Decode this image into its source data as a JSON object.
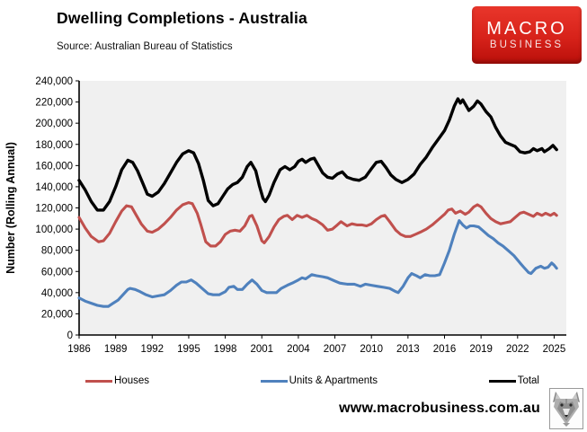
{
  "header": {
    "title": "Dwelling Completions - Australia",
    "source": "Source: Australian Bureau of Statistics",
    "logo": {
      "line1": "MACRO",
      "line2": "BUSINESS",
      "bg_color": "#d7221a"
    }
  },
  "footer": {
    "website": "www.macrobusiness.com.au",
    "wolf_logo": "wolf-head-icon"
  },
  "chart_data": {
    "type": "line",
    "title": "Dwelling Completions - Australia",
    "xlabel": "",
    "ylabel": "Number (Rolling Annual)",
    "xlim": [
      1986,
      2026
    ],
    "ylim": [
      0,
      240000
    ],
    "x_ticks": [
      1986,
      1989,
      1992,
      1995,
      1998,
      2001,
      2004,
      2007,
      2010,
      2013,
      2016,
      2019,
      2022,
      2025
    ],
    "y_ticks": [
      0,
      20000,
      40000,
      60000,
      80000,
      100000,
      120000,
      140000,
      160000,
      180000,
      200000,
      220000,
      240000
    ],
    "grid": false,
    "plot_bg": "#f0f0f0",
    "legend_position": "bottom",
    "series": [
      {
        "name": "Houses",
        "color": "#c0504d",
        "points": [
          [
            1986,
            111000
          ],
          [
            1986.5,
            101000
          ],
          [
            1987,
            93000
          ],
          [
            1987.6,
            88000
          ],
          [
            1988,
            89000
          ],
          [
            1988.5,
            96000
          ],
          [
            1989,
            107000
          ],
          [
            1989.5,
            117000
          ],
          [
            1989.9,
            122000
          ],
          [
            1990.3,
            121000
          ],
          [
            1990.7,
            113000
          ],
          [
            1991.1,
            105000
          ],
          [
            1991.6,
            98000
          ],
          [
            1992,
            97000
          ],
          [
            1992.5,
            100000
          ],
          [
            1993,
            105000
          ],
          [
            1993.5,
            111000
          ],
          [
            1994,
            118000
          ],
          [
            1994.5,
            123000
          ],
          [
            1995,
            125000
          ],
          [
            1995.3,
            124000
          ],
          [
            1995.7,
            115000
          ],
          [
            1996,
            104000
          ],
          [
            1996.4,
            88000
          ],
          [
            1996.8,
            84000
          ],
          [
            1997.2,
            84000
          ],
          [
            1997.6,
            88000
          ],
          [
            1998,
            95000
          ],
          [
            1998.4,
            98000
          ],
          [
            1998.8,
            99000
          ],
          [
            1999.2,
            98000
          ],
          [
            1999.6,
            103000
          ],
          [
            2000,
            112000
          ],
          [
            2000.2,
            113000
          ],
          [
            2000.6,
            103000
          ],
          [
            2001,
            89000
          ],
          [
            2001.2,
            87000
          ],
          [
            2001.6,
            93000
          ],
          [
            2002,
            102000
          ],
          [
            2002.4,
            109000
          ],
          [
            2002.8,
            112000
          ],
          [
            2003.1,
            113000
          ],
          [
            2003.5,
            109000
          ],
          [
            2003.9,
            113000
          ],
          [
            2004.3,
            111000
          ],
          [
            2004.7,
            113000
          ],
          [
            2005.1,
            110000
          ],
          [
            2005.5,
            108000
          ],
          [
            2006,
            104000
          ],
          [
            2006.4,
            99000
          ],
          [
            2006.8,
            100000
          ],
          [
            2007.2,
            104000
          ],
          [
            2007.5,
            107000
          ],
          [
            2008,
            103000
          ],
          [
            2008.4,
            105000
          ],
          [
            2008.8,
            104000
          ],
          [
            2009.2,
            104000
          ],
          [
            2009.6,
            103000
          ],
          [
            2010,
            105000
          ],
          [
            2010.4,
            109000
          ],
          [
            2010.8,
            112000
          ],
          [
            2011.1,
            113000
          ],
          [
            2011.5,
            107000
          ],
          [
            2012,
            99000
          ],
          [
            2012.4,
            95000
          ],
          [
            2012.8,
            93000
          ],
          [
            2013.2,
            93000
          ],
          [
            2013.6,
            95000
          ],
          [
            2014,
            97000
          ],
          [
            2014.5,
            100000
          ],
          [
            2015,
            104000
          ],
          [
            2015.5,
            109000
          ],
          [
            2016,
            114000
          ],
          [
            2016.3,
            118000
          ],
          [
            2016.6,
            119000
          ],
          [
            2016.9,
            115000
          ],
          [
            2017.3,
            117000
          ],
          [
            2017.7,
            114000
          ],
          [
            2018,
            116000
          ],
          [
            2018.4,
            121000
          ],
          [
            2018.7,
            123000
          ],
          [
            2019,
            121000
          ],
          [
            2019.4,
            115000
          ],
          [
            2019.8,
            110000
          ],
          [
            2020.2,
            107000
          ],
          [
            2020.6,
            105000
          ],
          [
            2021,
            106000
          ],
          [
            2021.4,
            107000
          ],
          [
            2021.8,
            111000
          ],
          [
            2022.2,
            115000
          ],
          [
            2022.5,
            116000
          ],
          [
            2022.9,
            114000
          ],
          [
            2023.3,
            112000
          ],
          [
            2023.6,
            115000
          ],
          [
            2024,
            113000
          ],
          [
            2024.3,
            115000
          ],
          [
            2024.7,
            113000
          ],
          [
            2025,
            115000
          ],
          [
            2025.2,
            113000
          ]
        ]
      },
      {
        "name": "Units & Apartments",
        "color": "#4f81bd",
        "points": [
          [
            1986,
            35000
          ],
          [
            1986.5,
            32000
          ],
          [
            1987,
            30000
          ],
          [
            1987.5,
            28000
          ],
          [
            1988,
            27000
          ],
          [
            1988.4,
            27000
          ],
          [
            1988.8,
            30000
          ],
          [
            1989.2,
            33000
          ],
          [
            1989.6,
            38000
          ],
          [
            1990,
            43000
          ],
          [
            1990.2,
            44000
          ],
          [
            1990.6,
            43000
          ],
          [
            1991,
            41000
          ],
          [
            1991.5,
            38000
          ],
          [
            1992,
            36000
          ],
          [
            1992.5,
            37000
          ],
          [
            1993,
            38000
          ],
          [
            1993.5,
            42000
          ],
          [
            1994,
            47000
          ],
          [
            1994.4,
            50000
          ],
          [
            1994.8,
            50000
          ],
          [
            1995.2,
            52000
          ],
          [
            1995.6,
            49000
          ],
          [
            1996,
            45000
          ],
          [
            1996.6,
            39000
          ],
          [
            1997,
            38000
          ],
          [
            1997.5,
            38000
          ],
          [
            1998,
            41000
          ],
          [
            1998.3,
            45000
          ],
          [
            1998.7,
            46000
          ],
          [
            1999,
            43000
          ],
          [
            1999.4,
            43000
          ],
          [
            1999.8,
            48000
          ],
          [
            2000.2,
            52000
          ],
          [
            2000.6,
            48000
          ],
          [
            2001,
            42000
          ],
          [
            2001.4,
            40000
          ],
          [
            2001.8,
            40000
          ],
          [
            2002.2,
            40000
          ],
          [
            2002.6,
            44000
          ],
          [
            2003.1,
            47000
          ],
          [
            2003.5,
            49000
          ],
          [
            2004,
            52000
          ],
          [
            2004.3,
            54000
          ],
          [
            2004.6,
            53000
          ],
          [
            2005.1,
            57000
          ],
          [
            2005.5,
            56000
          ],
          [
            2006,
            55000
          ],
          [
            2006.4,
            54000
          ],
          [
            2007,
            51000
          ],
          [
            2007.4,
            49000
          ],
          [
            2008,
            48000
          ],
          [
            2008.6,
            48000
          ],
          [
            2009.1,
            46000
          ],
          [
            2009.5,
            48000
          ],
          [
            2010,
            47000
          ],
          [
            2010.5,
            46000
          ],
          [
            2011,
            45000
          ],
          [
            2011.5,
            44000
          ],
          [
            2012,
            41000
          ],
          [
            2012.2,
            40000
          ],
          [
            2012.6,
            46000
          ],
          [
            2013,
            54000
          ],
          [
            2013.3,
            58000
          ],
          [
            2013.7,
            56000
          ],
          [
            2014,
            54000
          ],
          [
            2014.4,
            57000
          ],
          [
            2014.8,
            56000
          ],
          [
            2015.2,
            56000
          ],
          [
            2015.6,
            57000
          ],
          [
            2016,
            68000
          ],
          [
            2016.4,
            80000
          ],
          [
            2016.8,
            95000
          ],
          [
            2017.2,
            108000
          ],
          [
            2017.5,
            104000
          ],
          [
            2017.8,
            101000
          ],
          [
            2018.1,
            103000
          ],
          [
            2018.4,
            103000
          ],
          [
            2018.8,
            102000
          ],
          [
            2019.2,
            98000
          ],
          [
            2019.6,
            94000
          ],
          [
            2020,
            91000
          ],
          [
            2020.4,
            87000
          ],
          [
            2020.8,
            84000
          ],
          [
            2021.3,
            79000
          ],
          [
            2021.7,
            75000
          ],
          [
            2022.2,
            68000
          ],
          [
            2022.5,
            64000
          ],
          [
            2022.9,
            59000
          ],
          [
            2023.1,
            58000
          ],
          [
            2023.5,
            63000
          ],
          [
            2023.9,
            65000
          ],
          [
            2024.2,
            63000
          ],
          [
            2024.5,
            64000
          ],
          [
            2024.8,
            68000
          ],
          [
            2025,
            66000
          ],
          [
            2025.2,
            63000
          ]
        ]
      },
      {
        "name": "Total",
        "color": "#000000",
        "points": [
          [
            1986,
            146000
          ],
          [
            1986.5,
            137000
          ],
          [
            1987,
            126000
          ],
          [
            1987.5,
            118000
          ],
          [
            1988,
            118000
          ],
          [
            1988.5,
            126000
          ],
          [
            1989,
            140000
          ],
          [
            1989.5,
            156000
          ],
          [
            1990,
            165000
          ],
          [
            1990.4,
            163000
          ],
          [
            1990.8,
            155000
          ],
          [
            1991.2,
            144000
          ],
          [
            1991.6,
            133000
          ],
          [
            1992,
            131000
          ],
          [
            1992.5,
            135000
          ],
          [
            1993,
            143000
          ],
          [
            1993.5,
            153000
          ],
          [
            1994,
            163000
          ],
          [
            1994.5,
            171000
          ],
          [
            1995,
            174000
          ],
          [
            1995.4,
            172000
          ],
          [
            1995.8,
            162000
          ],
          [
            1996.2,
            146000
          ],
          [
            1996.6,
            127000
          ],
          [
            1997,
            122000
          ],
          [
            1997.4,
            124000
          ],
          [
            1997.8,
            131000
          ],
          [
            1998.2,
            138000
          ],
          [
            1998.6,
            142000
          ],
          [
            1999,
            144000
          ],
          [
            1999.4,
            149000
          ],
          [
            1999.8,
            159000
          ],
          [
            2000.1,
            163000
          ],
          [
            2000.5,
            155000
          ],
          [
            2000.8,
            141000
          ],
          [
            2001.1,
            129000
          ],
          [
            2001.3,
            126000
          ],
          [
            2001.6,
            132000
          ],
          [
            2002,
            144000
          ],
          [
            2002.5,
            156000
          ],
          [
            2002.9,
            159000
          ],
          [
            2003.3,
            156000
          ],
          [
            2003.7,
            159000
          ],
          [
            2004,
            164000
          ],
          [
            2004.3,
            166000
          ],
          [
            2004.6,
            163000
          ],
          [
            2005,
            166000
          ],
          [
            2005.3,
            167000
          ],
          [
            2005.7,
            159000
          ],
          [
            2006,
            153000
          ],
          [
            2006.4,
            149000
          ],
          [
            2006.8,
            148000
          ],
          [
            2007.2,
            152000
          ],
          [
            2007.6,
            154000
          ],
          [
            2008,
            149000
          ],
          [
            2008.5,
            147000
          ],
          [
            2009,
            146000
          ],
          [
            2009.5,
            149000
          ],
          [
            2010,
            157000
          ],
          [
            2010.4,
            163000
          ],
          [
            2010.8,
            164000
          ],
          [
            2011.2,
            158000
          ],
          [
            2011.6,
            151000
          ],
          [
            2012,
            147000
          ],
          [
            2012.5,
            144000
          ],
          [
            2013,
            147000
          ],
          [
            2013.5,
            152000
          ],
          [
            2014,
            161000
          ],
          [
            2014.5,
            168000
          ],
          [
            2015,
            177000
          ],
          [
            2015.5,
            185000
          ],
          [
            2016,
            193000
          ],
          [
            2016.4,
            203000
          ],
          [
            2016.8,
            216000
          ],
          [
            2017.1,
            223000
          ],
          [
            2017.3,
            219000
          ],
          [
            2017.5,
            222000
          ],
          [
            2017.8,
            216000
          ],
          [
            2018,
            212000
          ],
          [
            2018.4,
            216000
          ],
          [
            2018.7,
            221000
          ],
          [
            2019,
            218000
          ],
          [
            2019.4,
            211000
          ],
          [
            2019.8,
            206000
          ],
          [
            2020.2,
            196000
          ],
          [
            2020.6,
            188000
          ],
          [
            2021,
            182000
          ],
          [
            2021.4,
            180000
          ],
          [
            2021.8,
            178000
          ],
          [
            2022.2,
            173000
          ],
          [
            2022.6,
            172000
          ],
          [
            2023,
            173000
          ],
          [
            2023.3,
            176000
          ],
          [
            2023.6,
            174000
          ],
          [
            2024,
            176000
          ],
          [
            2024.2,
            173000
          ],
          [
            2024.6,
            176000
          ],
          [
            2024.9,
            179000
          ],
          [
            2025.2,
            175000
          ]
        ]
      }
    ]
  }
}
